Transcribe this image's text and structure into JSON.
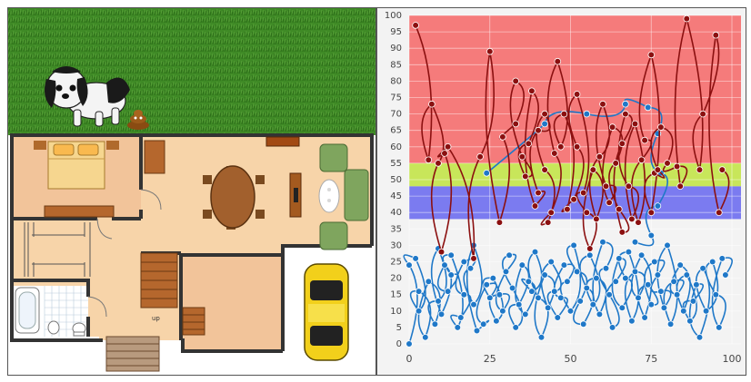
{
  "floorplan": {
    "stair_label": "up",
    "icons": [
      "dog-icon",
      "poop-icon",
      "car-icon",
      "bed-icon",
      "sofa-icon",
      "dining-table-icon",
      "bathtub-icon",
      "toilet-icon",
      "sink-icon",
      "fireplace-icon",
      "staircase-icon"
    ]
  },
  "chart_data": {
    "type": "line",
    "x_ticks": [
      "0",
      "25",
      "50",
      "75",
      "100"
    ],
    "y_ticks": [
      "0",
      "5",
      "10",
      "15",
      "20",
      "25",
      "30",
      "35",
      "40",
      "45",
      "50",
      "55",
      "60",
      "65",
      "70",
      "75",
      "80",
      "85",
      "90",
      "95",
      "100"
    ],
    "xlim": [
      0,
      100
    ],
    "ylim": [
      0,
      100
    ],
    "grid": true,
    "background_bands": [
      {
        "from": 0,
        "to": 38,
        "color": "#f3f3f3"
      },
      {
        "from": 38,
        "to": 48,
        "color": "#7b7bf0"
      },
      {
        "from": 48,
        "to": 55,
        "color": "#c8e65a"
      },
      {
        "from": 55,
        "to": 100,
        "color": "#f57b7b"
      }
    ],
    "series": [
      {
        "color": "#1f78c8",
        "points": [
          [
            0,
            0
          ],
          [
            0,
            24
          ],
          [
            2,
            26
          ],
          [
            3,
            10
          ],
          [
            3,
            16
          ],
          [
            5,
            2
          ],
          [
            6,
            19
          ],
          [
            8,
            6
          ],
          [
            9,
            13
          ],
          [
            9,
            29
          ],
          [
            10,
            9
          ],
          [
            11,
            24
          ],
          [
            12,
            16
          ],
          [
            13,
            21
          ],
          [
            13,
            27
          ],
          [
            15,
            5
          ],
          [
            16,
            8
          ],
          [
            17,
            15
          ],
          [
            17,
            25
          ],
          [
            19,
            23
          ],
          [
            20,
            12
          ],
          [
            20,
            30
          ],
          [
            21,
            4
          ],
          [
            23,
            6
          ],
          [
            24,
            18
          ],
          [
            25,
            14
          ],
          [
            26,
            20
          ],
          [
            27,
            7
          ],
          [
            28,
            15
          ],
          [
            29,
            10
          ],
          [
            30,
            22
          ],
          [
            31,
            27
          ],
          [
            32,
            17
          ],
          [
            33,
            5
          ],
          [
            34,
            12
          ],
          [
            35,
            24
          ],
          [
            36,
            9
          ],
          [
            37,
            19
          ],
          [
            38,
            16
          ],
          [
            39,
            28
          ],
          [
            40,
            14
          ],
          [
            41,
            2
          ],
          [
            42,
            21
          ],
          [
            43,
            11
          ],
          [
            44,
            25
          ],
          [
            45,
            16
          ],
          [
            46,
            8
          ],
          [
            47,
            14
          ],
          [
            48,
            24
          ],
          [
            49,
            19
          ],
          [
            50,
            10
          ],
          [
            51,
            30
          ],
          [
            52,
            22
          ],
          [
            53,
            13
          ],
          [
            54,
            6
          ],
          [
            55,
            17
          ],
          [
            56,
            27
          ],
          [
            57,
            12
          ],
          [
            58,
            20
          ],
          [
            59,
            9
          ],
          [
            60,
            31
          ],
          [
            61,
            23
          ],
          [
            62,
            15
          ],
          [
            63,
            5
          ],
          [
            64,
            19
          ],
          [
            65,
            26
          ],
          [
            66,
            11
          ],
          [
            67,
            20
          ],
          [
            68,
            28
          ],
          [
            69,
            7
          ],
          [
            70,
            22
          ],
          [
            71,
            14
          ],
          [
            72,
            27
          ],
          [
            73,
            8
          ],
          [
            74,
            18
          ],
          [
            75,
            12
          ],
          [
            76,
            25
          ],
          [
            77,
            21
          ],
          [
            78,
            16
          ],
          [
            79,
            11
          ],
          [
            80,
            30
          ],
          [
            81,
            6
          ],
          [
            82,
            19
          ],
          [
            83,
            15
          ],
          [
            84,
            24
          ],
          [
            85,
            10
          ],
          [
            86,
            21
          ],
          [
            87,
            7
          ],
          [
            88,
            13
          ],
          [
            89,
            18
          ],
          [
            90,
            2
          ],
          [
            91,
            23
          ],
          [
            92,
            10
          ],
          [
            94,
            25
          ],
          [
            95,
            15
          ],
          [
            96,
            5
          ],
          [
            97,
            26
          ],
          [
            98,
            21
          ]
        ]
      },
      {
        "color": "#1f78c8",
        "points": [
          [
            24,
            52
          ],
          [
            42,
            67
          ],
          [
            55,
            70
          ],
          [
            67,
            73
          ],
          [
            74,
            72
          ],
          [
            77,
            64
          ],
          [
            78,
            52
          ],
          [
            77,
            42
          ],
          [
            75,
            33
          ],
          [
            70,
            31
          ]
        ]
      },
      {
        "color": "#8b1010",
        "points": [
          [
            2,
            97
          ],
          [
            6,
            56
          ],
          [
            7,
            73
          ],
          [
            9,
            55
          ],
          [
            10,
            28
          ],
          [
            11,
            58
          ],
          [
            12,
            60
          ],
          [
            20,
            26
          ],
          [
            22,
            57
          ],
          [
            25,
            89
          ],
          [
            28,
            37
          ],
          [
            29,
            63
          ],
          [
            33,
            67
          ],
          [
            33,
            80
          ],
          [
            35,
            57
          ],
          [
            36,
            51
          ],
          [
            37,
            61
          ],
          [
            38,
            77
          ],
          [
            39,
            42
          ],
          [
            40,
            46
          ],
          [
            40,
            65
          ],
          [
            42,
            70
          ],
          [
            42,
            53
          ],
          [
            43,
            37
          ],
          [
            44,
            40
          ],
          [
            45,
            58
          ],
          [
            46,
            86
          ],
          [
            47,
            60
          ],
          [
            48,
            70
          ],
          [
            49,
            41
          ],
          [
            51,
            44
          ],
          [
            52,
            60
          ],
          [
            52,
            76
          ],
          [
            54,
            46
          ],
          [
            55,
            40
          ],
          [
            56,
            29
          ],
          [
            57,
            53
          ],
          [
            58,
            38
          ],
          [
            59,
            57
          ],
          [
            60,
            73
          ],
          [
            61,
            48
          ],
          [
            62,
            43
          ],
          [
            63,
            66
          ],
          [
            64,
            55
          ],
          [
            65,
            41
          ],
          [
            66,
            34
          ],
          [
            66,
            61
          ],
          [
            67,
            70
          ],
          [
            68,
            48
          ],
          [
            69,
            38
          ],
          [
            70,
            67
          ],
          [
            71,
            37
          ],
          [
            72,
            56
          ],
          [
            73,
            62
          ],
          [
            75,
            88
          ],
          [
            75,
            40
          ],
          [
            76,
            52
          ],
          [
            77,
            53
          ],
          [
            78,
            66
          ],
          [
            80,
            55
          ],
          [
            83,
            54
          ],
          [
            84,
            48
          ],
          [
            86,
            99
          ],
          [
            90,
            53
          ],
          [
            91,
            70
          ],
          [
            95,
            94
          ],
          [
            96,
            40
          ],
          [
            97,
            53
          ]
        ]
      }
    ]
  }
}
